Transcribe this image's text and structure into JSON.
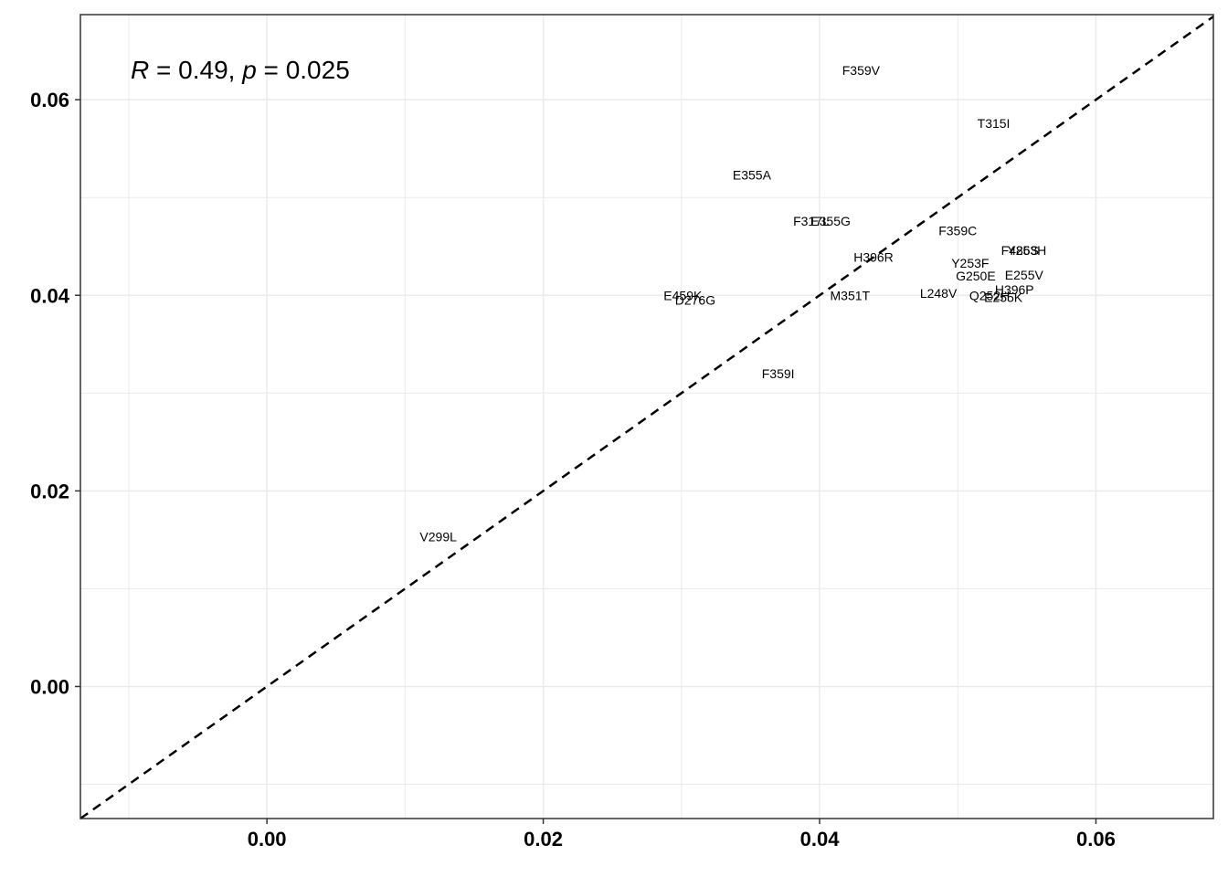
{
  "chart_data": {
    "type": "scatter",
    "title": "",
    "xlabel": "",
    "ylabel": "",
    "xlim": [
      -0.0135,
      0.0685
    ],
    "ylim": [
      -0.0135,
      0.0687
    ],
    "x_ticks": [
      0.0,
      0.02,
      0.04,
      0.06
    ],
    "x_tick_labels": [
      "0.00",
      "0.02",
      "0.04",
      "0.06"
    ],
    "y_ticks": [
      0.0,
      0.02,
      0.04,
      0.06
    ],
    "y_tick_labels": [
      "0.00",
      "0.02",
      "0.04",
      "0.06"
    ],
    "x_minor_grid": [
      -0.01,
      0.01,
      0.03,
      0.05
    ],
    "y_minor_grid": [
      -0.01,
      0.01,
      0.03,
      0.05
    ],
    "grid": true,
    "reference_line": "y = x",
    "annotation": {
      "r_symbol": "R",
      "r_text": " = 0.49, ",
      "p_symbol": "p",
      "p_text": " = 0.025"
    },
    "points": [
      {
        "label": "F359V",
        "x": 0.043,
        "y": 0.063
      },
      {
        "label": "T315I",
        "x": 0.0526,
        "y": 0.0576
      },
      {
        "label": "E355A",
        "x": 0.0351,
        "y": 0.0523
      },
      {
        "label": "F317L",
        "x": 0.0394,
        "y": 0.0476
      },
      {
        "label": "E355G",
        "x": 0.0408,
        "y": 0.0476
      },
      {
        "label": "F359C",
        "x": 0.05,
        "y": 0.0466
      },
      {
        "label": "F486S",
        "x": 0.0545,
        "y": 0.0446
      },
      {
        "label": "Y253H",
        "x": 0.055,
        "y": 0.0446
      },
      {
        "label": "H396R",
        "x": 0.0439,
        "y": 0.0439
      },
      {
        "label": "Y253F",
        "x": 0.0509,
        "y": 0.0433
      },
      {
        "label": "G250E",
        "x": 0.0513,
        "y": 0.042
      },
      {
        "label": "E255V",
        "x": 0.0548,
        "y": 0.0421
      },
      {
        "label": "H396P",
        "x": 0.0541,
        "y": 0.0406
      },
      {
        "label": "L248V",
        "x": 0.0486,
        "y": 0.0402
      },
      {
        "label": "Q252H",
        "x": 0.0523,
        "y": 0.04
      },
      {
        "label": "E255K",
        "x": 0.0533,
        "y": 0.0398
      },
      {
        "label": "M351T",
        "x": 0.0422,
        "y": 0.04
      },
      {
        "label": "E459K",
        "x": 0.0301,
        "y": 0.04
      },
      {
        "label": "D276G",
        "x": 0.031,
        "y": 0.0395
      },
      {
        "label": "F359I",
        "x": 0.037,
        "y": 0.032
      },
      {
        "label": "V299L",
        "x": 0.0124,
        "y": 0.0153
      }
    ]
  }
}
